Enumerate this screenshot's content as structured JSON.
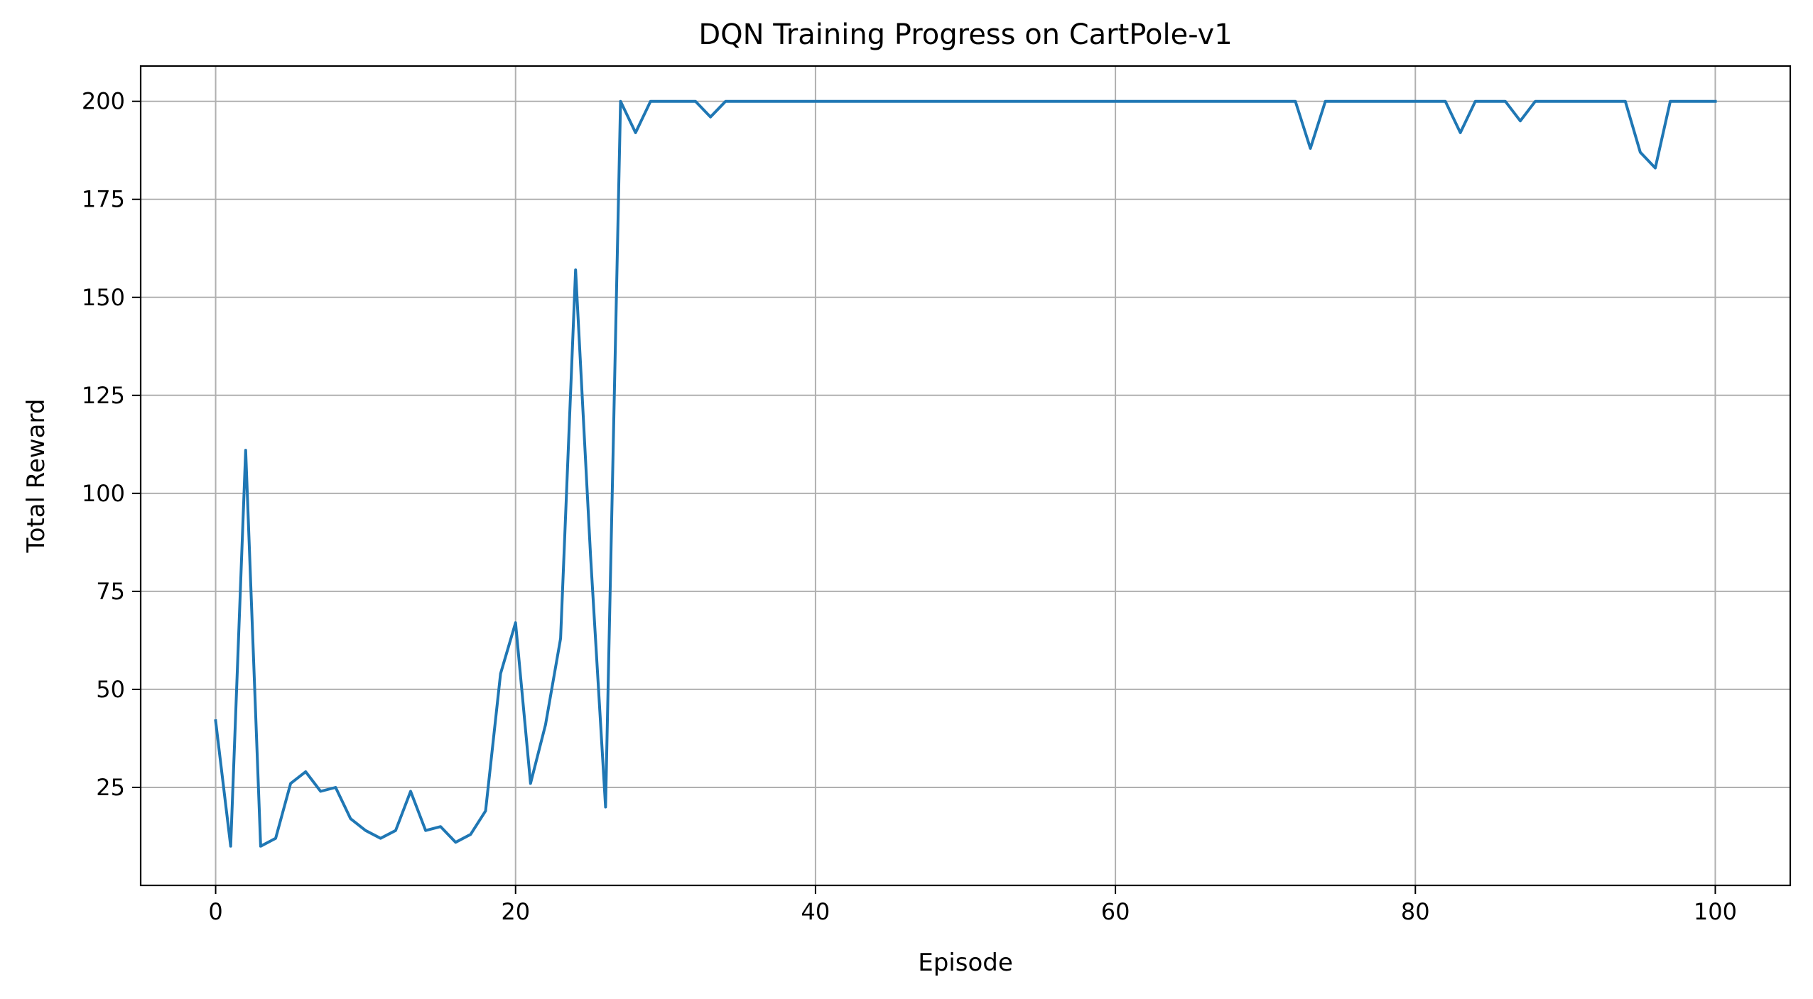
{
  "chart_data": {
    "type": "line",
    "title": "DQN Training Progress on CartPole-v1",
    "xlabel": "Episode",
    "ylabel": "Total Reward",
    "xlim": [
      -5,
      105
    ],
    "ylim": [
      0,
      209
    ],
    "xticks": [
      0,
      20,
      40,
      60,
      80,
      100
    ],
    "yticks": [
      25,
      50,
      75,
      100,
      125,
      150,
      175,
      200
    ],
    "grid": true,
    "legend": "none",
    "line_color": "#1f77b4",
    "series": [
      {
        "x": [
          0,
          1,
          2,
          3,
          4,
          5,
          6,
          7,
          8,
          9,
          10,
          11,
          12,
          13,
          14,
          15,
          16,
          17,
          18,
          19,
          20,
          21,
          22,
          23,
          24,
          25,
          26,
          27,
          28,
          29,
          30,
          31,
          32,
          33,
          34,
          35,
          36,
          37,
          38,
          39,
          40,
          41,
          42,
          43,
          44,
          45,
          46,
          47,
          48,
          49,
          50,
          51,
          52,
          53,
          54,
          55,
          56,
          57,
          58,
          59,
          60,
          61,
          62,
          63,
          64,
          65,
          66,
          67,
          68,
          69,
          70,
          71,
          72,
          73,
          74,
          75,
          76,
          77,
          78,
          79,
          80,
          81,
          82,
          83,
          84,
          85,
          86,
          87,
          88,
          89,
          90,
          91,
          92,
          93,
          94,
          95,
          96,
          97,
          98,
          99,
          100
        ],
        "values": [
          42,
          10,
          111,
          10,
          12,
          26,
          29,
          24,
          25,
          17,
          14,
          12,
          14,
          24,
          14,
          15,
          11,
          13,
          19,
          54,
          67,
          26,
          41,
          63,
          157,
          84,
          20,
          200,
          192,
          200,
          200,
          200,
          200,
          196,
          200,
          200,
          200,
          200,
          200,
          200,
          200,
          200,
          200,
          200,
          200,
          200,
          200,
          200,
          200,
          200,
          200,
          200,
          200,
          200,
          200,
          200,
          200,
          200,
          200,
          200,
          200,
          200,
          200,
          200,
          200,
          200,
          200,
          200,
          200,
          200,
          200,
          200,
          200,
          188,
          200,
          200,
          200,
          200,
          200,
          200,
          200,
          200,
          200,
          192,
          200,
          200,
          200,
          195,
          200,
          200,
          200,
          200,
          200,
          200,
          200,
          187,
          183,
          200,
          200,
          200,
          200
        ]
      }
    ]
  }
}
